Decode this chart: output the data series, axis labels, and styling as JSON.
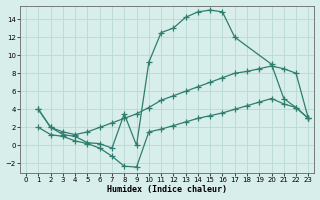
{
  "xlabel": "Humidex (Indice chaleur)",
  "line_color": "#2e7d6e",
  "bg_color": "#d8eeeb",
  "grid_color": "#b8d8d4",
  "xlim": [
    -0.5,
    23.5
  ],
  "ylim": [
    -3,
    15.5
  ],
  "xticks": [
    0,
    1,
    2,
    3,
    4,
    5,
    6,
    7,
    8,
    9,
    10,
    11,
    12,
    13,
    14,
    15,
    16,
    17,
    18,
    19,
    20,
    21,
    22,
    23
  ],
  "yticks": [
    -2,
    0,
    2,
    4,
    6,
    8,
    10,
    12,
    14
  ],
  "curve1_x": [
    1,
    2,
    3,
    4,
    5,
    6,
    7,
    8,
    9,
    10,
    11,
    12,
    13,
    14,
    15,
    16,
    17,
    20,
    21,
    22,
    23
  ],
  "curve1_y": [
    4.0,
    2.0,
    1.2,
    1.0,
    0.3,
    0.2,
    -0.3,
    3.5,
    0.0,
    9.2,
    12.5,
    13.0,
    14.2,
    14.8,
    15.0,
    14.8,
    12.0,
    9.0,
    5.2,
    4.2,
    3.0
  ],
  "curve2_x": [
    1,
    2,
    3,
    4,
    5,
    6,
    7,
    8,
    9,
    10,
    11,
    12,
    13,
    14,
    15,
    16,
    17,
    18,
    19,
    20,
    21,
    22,
    23
  ],
  "curve2_y": [
    2.0,
    1.2,
    1.0,
    0.5,
    0.2,
    -0.3,
    -1.2,
    -2.3,
    -2.4,
    1.5,
    1.8,
    2.2,
    2.6,
    3.0,
    3.3,
    3.6,
    4.0,
    4.4,
    4.8,
    5.2,
    4.6,
    4.2,
    3.0
  ],
  "curve3_x": [
    1,
    2,
    3,
    4,
    5,
    6,
    7,
    8,
    9,
    10,
    11,
    12,
    13,
    14,
    15,
    16,
    17,
    18,
    19,
    20,
    21,
    22,
    23
  ],
  "curve3_y": [
    4.0,
    2.0,
    1.5,
    1.2,
    1.5,
    2.0,
    2.5,
    3.0,
    3.5,
    4.2,
    5.0,
    5.5,
    6.0,
    6.5,
    7.0,
    7.5,
    8.0,
    8.2,
    8.5,
    8.8,
    8.5,
    8.0,
    3.0
  ]
}
